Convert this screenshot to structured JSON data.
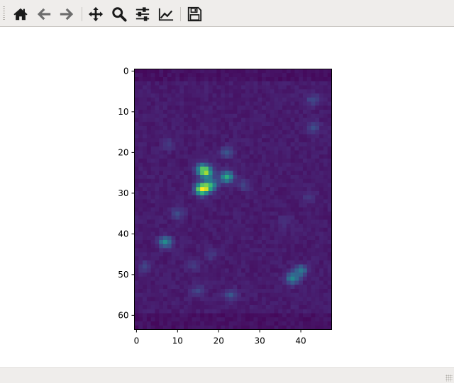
{
  "toolbar": {
    "buttons": [
      {
        "name": "home",
        "icon": "home-icon"
      },
      {
        "name": "back",
        "icon": "arrow-left-icon"
      },
      {
        "name": "forward",
        "icon": "arrow-right-icon"
      },
      {
        "name": "pan",
        "icon": "move-icon"
      },
      {
        "name": "zoom",
        "icon": "magnifier-icon"
      },
      {
        "name": "configure-subplots",
        "icon": "sliders-icon"
      },
      {
        "name": "edit-axis",
        "icon": "line-chart-icon"
      },
      {
        "name": "save",
        "icon": "floppy-disk-icon"
      }
    ]
  },
  "chart_data": {
    "type": "heatmap",
    "colormap": "viridis",
    "shape": [
      64,
      48
    ],
    "xlim": [
      -0.5,
      47.5
    ],
    "ylim": [
      63.5,
      -0.5
    ],
    "xticks": [
      0,
      10,
      20,
      30,
      40
    ],
    "yticks": [
      0,
      10,
      20,
      30,
      40,
      50,
      60
    ],
    "background_level": 0.02,
    "bright_spots": [
      {
        "x": 16,
        "y": 29,
        "v": 1.0
      },
      {
        "x": 17,
        "y": 25,
        "v": 0.6
      },
      {
        "x": 22,
        "y": 26,
        "v": 0.55
      },
      {
        "x": 18,
        "y": 28,
        "v": 0.5
      },
      {
        "x": 16,
        "y": 24,
        "v": 0.45
      },
      {
        "x": 7,
        "y": 42,
        "v": 0.4
      },
      {
        "x": 38,
        "y": 51,
        "v": 0.4
      },
      {
        "x": 40,
        "y": 49,
        "v": 0.32
      },
      {
        "x": 22,
        "y": 20,
        "v": 0.2
      },
      {
        "x": 43,
        "y": 7,
        "v": 0.15
      },
      {
        "x": 43,
        "y": 14,
        "v": 0.15
      },
      {
        "x": 23,
        "y": 55,
        "v": 0.18
      },
      {
        "x": 10,
        "y": 35,
        "v": 0.15
      },
      {
        "x": 2,
        "y": 48,
        "v": 0.12
      },
      {
        "x": 15,
        "y": 54,
        "v": 0.15
      },
      {
        "x": 14,
        "y": 48,
        "v": 0.1
      },
      {
        "x": 8,
        "y": 18,
        "v": 0.08
      },
      {
        "x": 26,
        "y": 28,
        "v": 0.12
      },
      {
        "x": 42,
        "y": 31,
        "v": 0.08
      },
      {
        "x": 18,
        "y": 45,
        "v": 0.1
      },
      {
        "x": 36,
        "y": 37,
        "v": 0.08
      }
    ]
  }
}
